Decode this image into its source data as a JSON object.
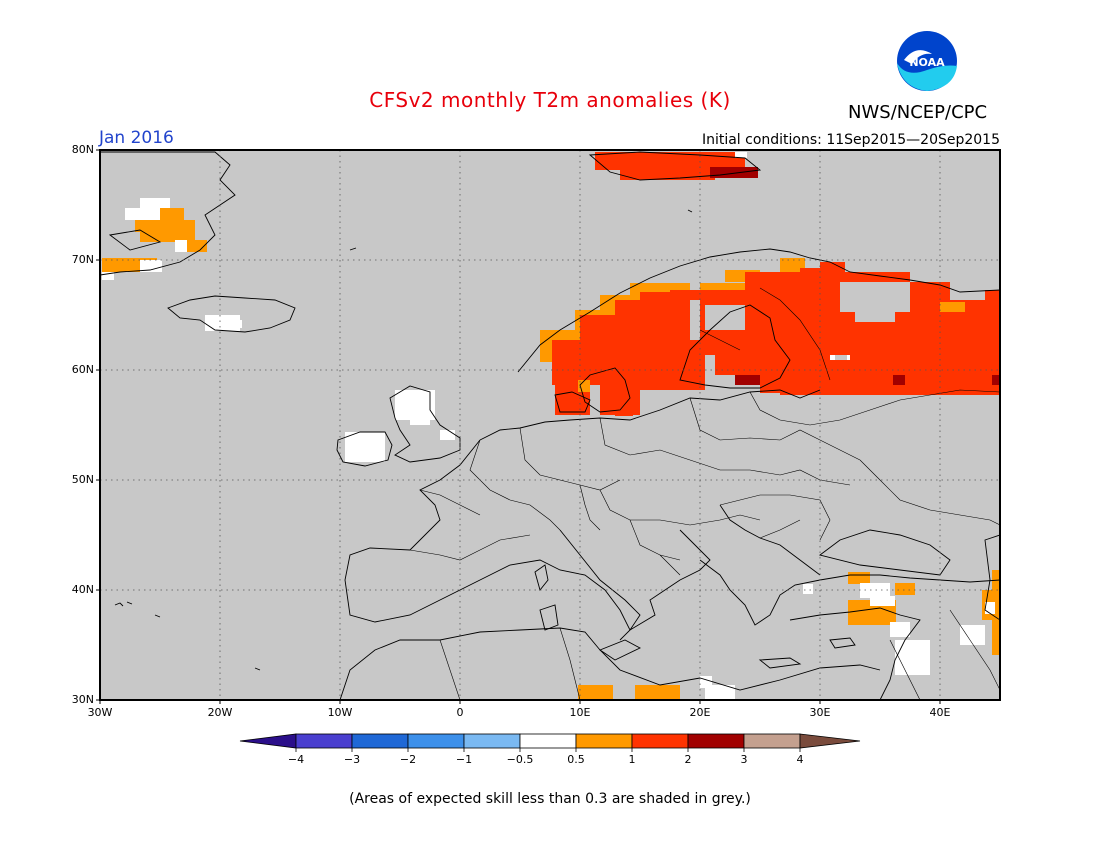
{
  "title": "CFSv2 monthly T2m anomalies (K)",
  "agency": "NWS/NCEP/CPC",
  "logo_text": "NOAA",
  "month": "Jan 2016",
  "initial_conditions": "Initial conditions: 11Sep2015—20Sep2015",
  "lat_labels": [
    "80N",
    "70N",
    "60N",
    "50N",
    "40N",
    "30N"
  ],
  "lon_labels": [
    "30W",
    "20W",
    "10W",
    "0",
    "10E",
    "20E",
    "30E",
    "40E"
  ],
  "colorbar": {
    "labels": [
      "−4",
      "−3",
      "−2",
      "−1",
      "−0.5",
      "0.5",
      "1",
      "2",
      "3",
      "4"
    ],
    "colors": [
      "#2b0f8a",
      "#4a3fcf",
      "#1f68d6",
      "#3d90ea",
      "#7ab9f2",
      "#ffffff",
      "#ff9900",
      "#ff3300",
      "#a10000",
      "#c4a08f",
      "#7a4b3c"
    ]
  },
  "footnote": "(Areas of expected skill less than 0.3 are shaded in grey.)",
  "colors": {
    "background": "#c8c8c8",
    "orange": "#ff9900",
    "red": "#ff3300",
    "darkred": "#a10000",
    "white": "#ffffff"
  }
}
